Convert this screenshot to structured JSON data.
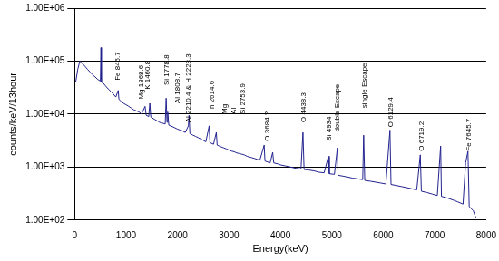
{
  "chart_data": {
    "type": "line",
    "x_label": "Energy(keV)",
    "y_label": "counts/keV/13hour",
    "log": "y",
    "grid": "y",
    "color": "#23238f",
    "marker": "none",
    "line_style": "solid",
    "xlim": [
      0,
      8000
    ],
    "xticks": [
      0,
      1000,
      2000,
      3000,
      4000,
      5000,
      6000,
      7000,
      8000
    ],
    "ylim": [
      100,
      1000000
    ],
    "yticks": [
      {
        "value": 100,
        "label": "1.00E+02"
      },
      {
        "value": 1000,
        "label": "1.00E+03"
      },
      {
        "value": 10000,
        "label": "1.00E+04"
      },
      {
        "value": 100000,
        "label": "1.00E+05"
      },
      {
        "value": 1000000,
        "label": "1.00E+06"
      }
    ],
    "x": [
      20,
      60,
      100,
      150,
      200,
      250,
      300,
      350,
      400,
      450,
      500,
      511,
      520,
      560,
      600,
      650,
      700,
      750,
      800,
      846.7,
      860,
      900,
      950,
      1000,
      1050,
      1100,
      1150,
      1200,
      1250,
      1300,
      1368.6,
      1390,
      1440,
      1460.8,
      1480,
      1550,
      1600,
      1650,
      1700,
      1760,
      1778.8,
      1795,
      1808.7,
      1830,
      1900,
      1950,
      2000,
      2050,
      2100,
      2150,
      2210.4,
      2223.3,
      2240,
      2300,
      2350,
      2400,
      2450,
      2500,
      2550,
      2614.6,
      2630,
      2700,
      2753.9,
      2770,
      2850,
      2900,
      2950,
      3000,
      3050,
      3100,
      3150,
      3200,
      3250,
      3300,
      3350,
      3400,
      3450,
      3500,
      3550,
      3600,
      3684.2,
      3700,
      3750,
      3800,
      3850,
      3870,
      3950,
      4000,
      4100,
      4200,
      4300,
      4400,
      4438.3,
      4460,
      4550,
      4650,
      4750,
      4850,
      4934,
      4950,
      5050,
      5107,
      5120,
      5200,
      5300,
      5400,
      5500,
      5600,
      5618,
      5640,
      5750,
      5850,
      5950,
      6050,
      6129.4,
      6150,
      6250,
      6350,
      6450,
      6550,
      6650,
      6719.2,
      6740,
      6850,
      6950,
      7050,
      7115,
      7130,
      7250,
      7350,
      7450,
      7550,
      7600,
      7645.7,
      7670,
      7750,
      7800
    ],
    "values": [
      40000,
      70000,
      100000,
      90000,
      80000,
      70000,
      62000,
      55000,
      50000,
      45000,
      42000,
      180000,
      40000,
      38000,
      34000,
      30000,
      27000,
      24000,
      21000,
      28000,
      19000,
      17500,
      16000,
      15000,
      14000,
      13000,
      12000,
      11500,
      11000,
      10000,
      14000,
      9500,
      9000,
      16000,
      8800,
      8000,
      7500,
      7000,
      6800,
      6500,
      20000,
      7000,
      11000,
      6200,
      5800,
      5500,
      5200,
      5000,
      4800,
      4500,
      6000,
      9500,
      4300,
      4000,
      3800,
      3600,
      3400,
      3200,
      3000,
      6000,
      2900,
      2700,
      4500,
      2600,
      2400,
      2300,
      2200,
      2100,
      2000,
      1950,
      1850,
      1800,
      1750,
      1700,
      1600,
      1550,
      1500,
      1450,
      1400,
      1350,
      2600,
      1300,
      1250,
      1200,
      1900,
      1200,
      1150,
      1100,
      1050,
      1000,
      950,
      920,
      4500,
      900,
      880,
      850,
      800,
      780,
      1600,
      750,
      730,
      2300,
      700,
      680,
      650,
      620,
      600,
      580,
      4000,
      560,
      540,
      520,
      500,
      480,
      5000,
      470,
      450,
      430,
      410,
      390,
      370,
      1700,
      350,
      330,
      310,
      290,
      2500,
      280,
      260,
      240,
      220,
      200,
      1200,
      2000,
      180,
      150,
      110
    ],
    "annotations": [
      {
        "text": "Fe 846.7",
        "x": 840,
        "y": 43000
      },
      {
        "text": "Mg 1368.6",
        "x": 1296,
        "y": 19000
      },
      {
        "text": "K 1460.8",
        "x": 1418,
        "y": 29000
      },
      {
        "text": "Si 1778.8",
        "x": 1786,
        "y": 35000
      },
      {
        "text": "Al 1808.7",
        "x": 2000,
        "y": 16000
      },
      {
        "text": "Al 2210.4 & H 2223.3",
        "x": 2207,
        "y": 6900
      },
      {
        "text": "Th 2614.6",
        "x": 2680,
        "y": 10400
      },
      {
        "text": "Mg",
        "x": 2925,
        "y": 10000
      },
      {
        "text": "Al",
        "x": 3100,
        "y": 10000
      },
      {
        "text": "Si 2753.9",
        "x": 3275,
        "y": 10000
      },
      {
        "text": "O 3684.2",
        "x": 3748,
        "y": 3100
      },
      {
        "text": "O 4438.3",
        "x": 4448,
        "y": 7000
      },
      {
        "text": "Si 4934",
        "x": 4956,
        "y": 3100
      },
      {
        "text": "double Escape",
        "x": 5114,
        "y": 4600
      },
      {
        "text": "single Escape",
        "x": 5640,
        "y": 13000
      },
      {
        "text": "O 6129.4",
        "x": 6147,
        "y": 5700
      },
      {
        "text": "O 6719.2",
        "x": 6742,
        "y": 2000
      },
      {
        "text": "Fe 7645.7",
        "x": 7670,
        "y": 2000
      }
    ]
  }
}
